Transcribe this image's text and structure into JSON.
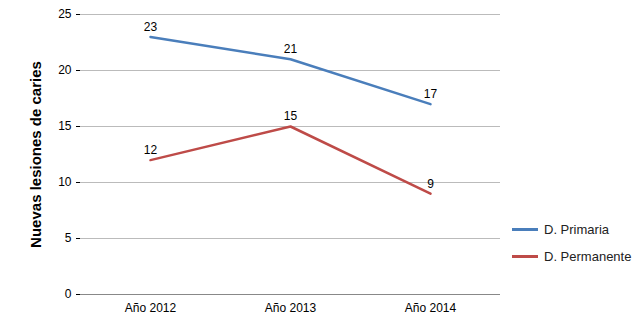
{
  "chart_data": {
    "type": "line",
    "ylabel": "Nuevas lesiones de caries",
    "categories": [
      "Año 2012",
      "Año 2013",
      "Año 2014"
    ],
    "series": [
      {
        "name": "D. Primaria",
        "color": "#4a7ebb",
        "values": [
          23,
          21,
          17
        ]
      },
      {
        "name": "D. Permanente",
        "color": "#be4b48",
        "values": [
          12,
          15,
          9
        ]
      }
    ],
    "ylim": [
      0,
      25
    ],
    "yticks": [
      0,
      5,
      10,
      15,
      20,
      25
    ],
    "grid": true,
    "data_labels": true,
    "legend": "right"
  }
}
